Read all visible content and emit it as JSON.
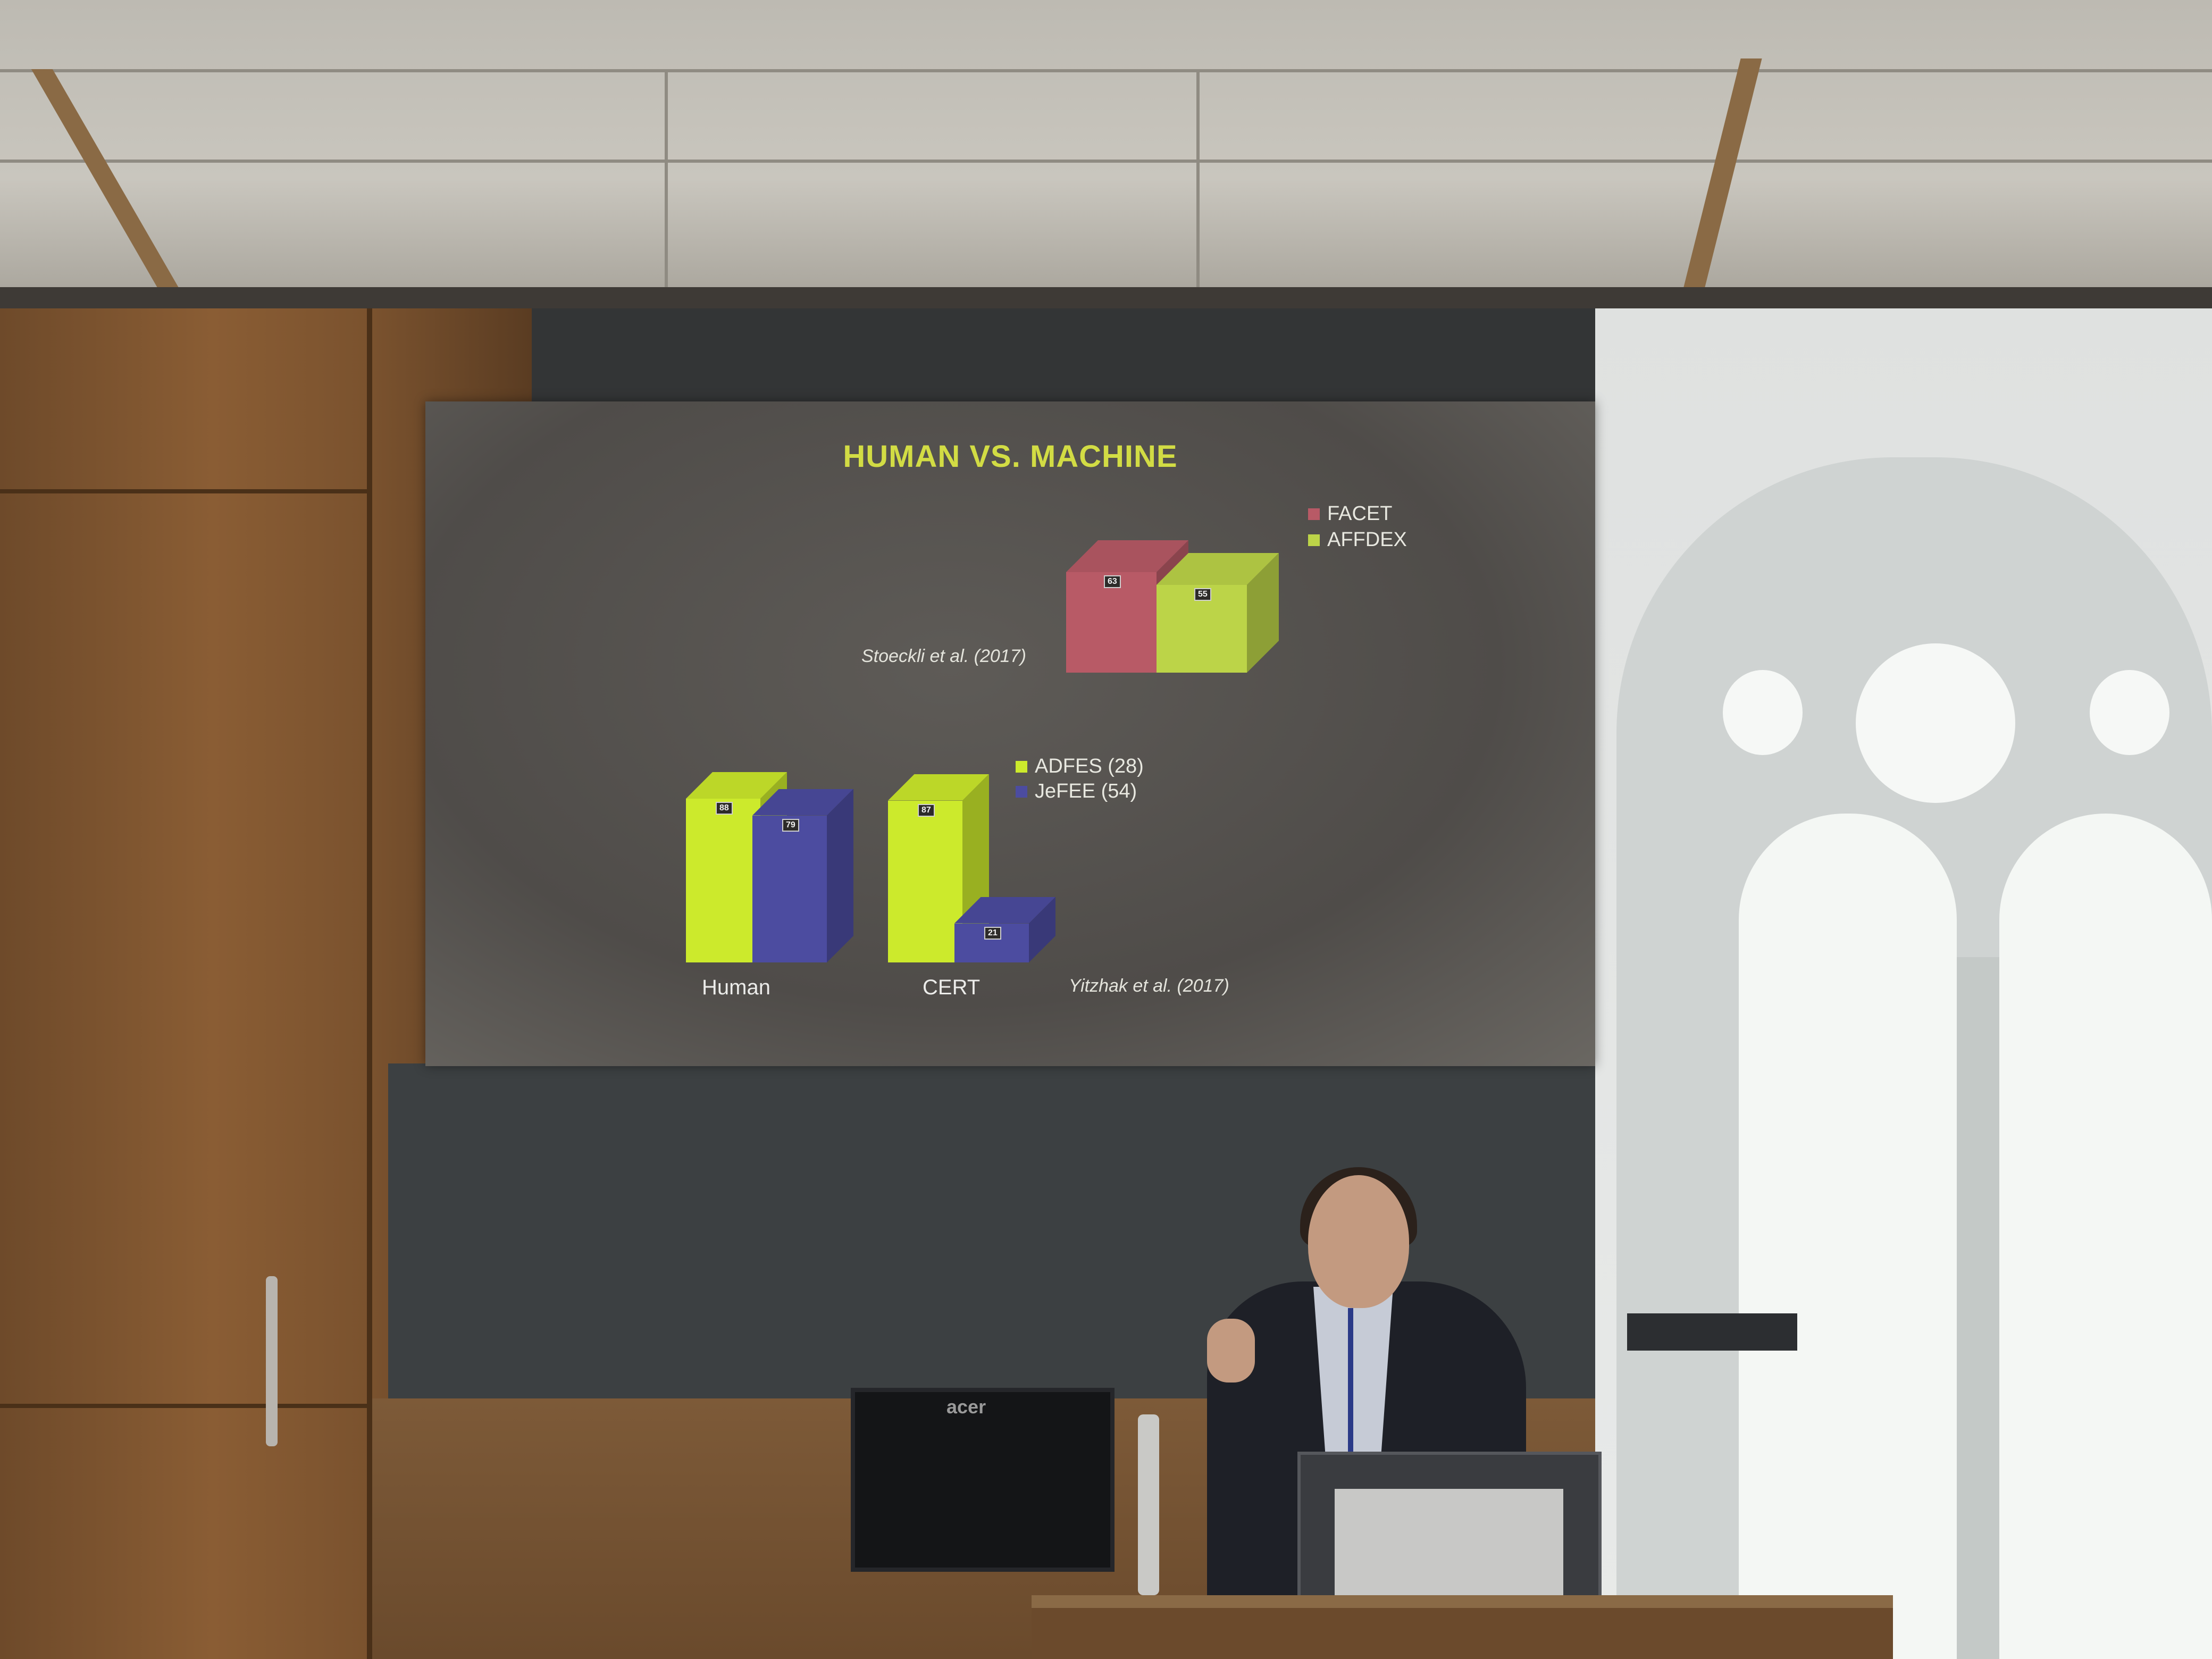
{
  "slide": {
    "title": "HUMAN VS. MACHINE",
    "top_legend": [
      {
        "label": "FACET",
        "color": "#b85a66"
      },
      {
        "label": "AFFDEX",
        "color": "#bcd448"
      }
    ],
    "top_citation": "Stoeckli et al. (2017)",
    "bottom_legend": [
      {
        "label": "ADFES (28)",
        "color": "#ccea2c"
      },
      {
        "label": "JeFEE (54)",
        "color": "#4c4ca0"
      }
    ],
    "bottom_citation": "Yitzhak et al. (2017)",
    "bottom_categories": [
      "Human",
      "CERT"
    ]
  },
  "monitor_brand": "acer",
  "chart_data": [
    {
      "type": "bar",
      "categories": [
        ""
      ],
      "series": [
        {
          "name": "FACET",
          "values": [
            63
          ]
        },
        {
          "name": "AFFDEX",
          "values": [
            55
          ]
        }
      ],
      "legend": "top-right"
    },
    {
      "type": "bar",
      "categories": [
        "Human",
        "CERT"
      ],
      "series": [
        {
          "name": "ADFES (28)",
          "values": [
            88,
            87
          ]
        },
        {
          "name": "JeFEE (54)",
          "values": [
            79,
            21
          ]
        }
      ],
      "legend": "top-right"
    }
  ]
}
